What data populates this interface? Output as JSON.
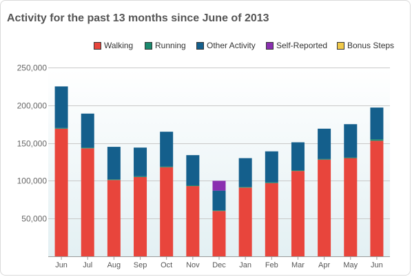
{
  "title": "Activity for the past 13 months since June of 2013",
  "legend": [
    {
      "label": "Walking",
      "color": "#e8453c"
    },
    {
      "label": "Running",
      "color": "#1a8a6e"
    },
    {
      "label": "Other Activity",
      "color": "#145f8c"
    },
    {
      "label": "Self-Reported",
      "color": "#8a2fb0"
    },
    {
      "label": "Bonus Steps",
      "color": "#f0c94a"
    }
  ],
  "chart_data": {
    "type": "bar",
    "stacked": true,
    "categories": [
      "Jun",
      "Jul",
      "Aug",
      "Sep",
      "Oct",
      "Nov",
      "Dec",
      "Jan",
      "Feb",
      "Mar",
      "Apr",
      "May",
      "Jun"
    ],
    "series": [
      {
        "name": "Walking",
        "color": "#e8453c",
        "values": [
          169000,
          143000,
          101000,
          105000,
          118000,
          93000,
          60000,
          91000,
          97000,
          113000,
          128000,
          130000,
          153000
        ]
      },
      {
        "name": "Running",
        "color": "#1a8a6e",
        "values": [
          1000,
          1000,
          1000,
          1000,
          1000,
          1000,
          1000,
          1000,
          1000,
          1000,
          1000,
          1000,
          2000
        ]
      },
      {
        "name": "Other Activity",
        "color": "#145f8c",
        "values": [
          55000,
          45000,
          43000,
          38000,
          46000,
          40000,
          26000,
          38000,
          41000,
          37000,
          40000,
          44000,
          42000
        ]
      },
      {
        "name": "Self-Reported",
        "color": "#8a2fb0",
        "values": [
          0,
          0,
          0,
          0,
          0,
          0,
          13000,
          0,
          0,
          0,
          0,
          0,
          0
        ]
      },
      {
        "name": "Bonus Steps",
        "color": "#f0c94a",
        "values": [
          0,
          0,
          0,
          0,
          0,
          0,
          0,
          0,
          0,
          0,
          0,
          0,
          0
        ]
      }
    ],
    "yticks": [
      "50,000",
      "100,000",
      "150,000",
      "200,000",
      "250,000"
    ],
    "ytick_values": [
      50000,
      100000,
      150000,
      200000,
      250000
    ],
    "ylim": [
      0,
      250000
    ],
    "grid": true
  }
}
